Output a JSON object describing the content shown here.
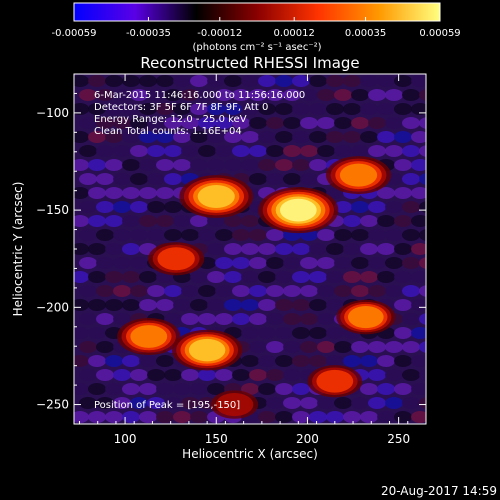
{
  "colorbar": {
    "ticks": [
      "-0.00059",
      "-0.00035",
      "-0.00012",
      "0.00012",
      "0.00035",
      "0.00059"
    ],
    "tick_values": [
      -0.00059,
      -0.00035,
      -0.00012,
      0.00012,
      0.00035,
      0.00059
    ],
    "range": [
      -0.00059,
      0.00059
    ],
    "units": "(photons cm⁻² s⁻¹ asec⁻²)",
    "colors": [
      "#0000ff",
      "#5a00e6",
      "#000000",
      "#8a0000",
      "#ff3300",
      "#ff9900",
      "#ffff80"
    ]
  },
  "chart_data": {
    "type": "heatmap",
    "title": "Reconstructed RHESSI Image",
    "xlabel": "Heliocentric X (arcsec)",
    "ylabel": "Heliocentric Y (arcsec)",
    "xlim": [
      72,
      265
    ],
    "ylim": [
      -260,
      -80
    ],
    "xticks": [
      100,
      150,
      200,
      250
    ],
    "yticks": [
      -100,
      -150,
      -200,
      -250
    ],
    "annotations": [
      "6-Mar-2015 11:46:16.000 to 11:56:16.000",
      "Detectors: 3F 5F 6F 7F 8F 9F, Att 0",
      "Energy Range: 12.0 - 25.0 keV",
      "Clean     Total counts: 1.16E+04"
    ],
    "peak_label": "Position of Peak = [195,-150]",
    "peak": [
      195,
      -150
    ],
    "sources": [
      {
        "x": 195,
        "y": -150,
        "value": 0.00059
      },
      {
        "x": 150,
        "y": -143,
        "value": 0.00052
      },
      {
        "x": 228,
        "y": -132,
        "value": 0.00042
      },
      {
        "x": 145,
        "y": -222,
        "value": 0.00048
      },
      {
        "x": 113,
        "y": -215,
        "value": 0.0004
      },
      {
        "x": 232,
        "y": -205,
        "value": 0.00035
      },
      {
        "x": 215,
        "y": -238,
        "value": 0.0003
      },
      {
        "x": 128,
        "y": -175,
        "value": 0.00032
      },
      {
        "x": 160,
        "y": -250,
        "value": 0.00022
      }
    ]
  },
  "footer_timestamp": "20-Aug-2017 14:59"
}
